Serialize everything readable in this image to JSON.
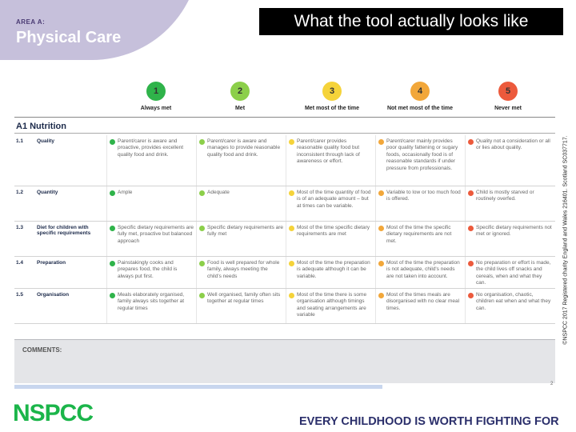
{
  "slide": {
    "title": "What the tool actually looks like",
    "side_note": "©NSPCC 2017 Registered charity England and Wales 216401. Scotland SC037717.",
    "area_label": "AREA A:",
    "area_title": "Physical Care"
  },
  "scale": [
    {
      "number": "1",
      "label": "Always met",
      "color": "#2fb34a"
    },
    {
      "number": "2",
      "label": "Met",
      "color": "#8ccf4a"
    },
    {
      "number": "3",
      "label": "Met most of the time",
      "color": "#f5d33a"
    },
    {
      "number": "4",
      "label": "Not met most of the time",
      "color": "#f2a73a"
    },
    {
      "number": "5",
      "label": "Never met",
      "color": "#ec5a3c"
    }
  ],
  "section": {
    "title": "A1 Nutrition"
  },
  "rows": [
    {
      "num": "1.1",
      "label": "Quality",
      "cells": [
        "Parent/carer is aware and proactive, provides excellent quality food and drink.",
        "Parent/carer is aware and manages to provide reasonable quality food and drink.",
        "Parent/carer provides reasonable quality food but inconsistent through lack of awareness or effort.",
        "Parent/carer mainly provides poor quality fattening or sugary foods, occasionally food is of reasonable standards if under pressure from professionals.",
        "Quality not a consideration or all or lies about quality."
      ]
    },
    {
      "num": "1.2",
      "label": "Quantity",
      "cells": [
        "Ample",
        "Adequate",
        "Most of the time quantity of food is of an adequate amount – but at times can be variable.",
        "Variable to low or too much food is offered.",
        "Child is mostly starved or routinely overfed."
      ]
    },
    {
      "num": "1.3",
      "label": "Diet for children with specific requirements",
      "cells": [
        "Specific dietary requirements are fully met, proactive but balanced approach",
        "Specific dietary requirements are fully met",
        "Most of the time specific dietary requirements are met",
        "Most of the time the specific dietary requirements are not met.",
        "Specific dietary requirements not met or ignored."
      ]
    },
    {
      "num": "1.4",
      "label": "Preparation",
      "cells": [
        "Painstakingly cooks and prepares food, the child is always put first.",
        "Food is well prepared for whole family, always meeting the child's needs",
        "Most of the time the preparation is adequate although it can be variable.",
        "Most of the time the preparation is not adequate, child's needs are not taken into account.",
        "No preparation or effort is made, the child lives off snacks and cereals, when and what they can."
      ]
    },
    {
      "num": "1.5",
      "label": "Organisation",
      "cells": [
        "Meals elaborately organised, family always sits together at regular times",
        "Well organised, family often sits together at regular times",
        "Most of the time there is some organisation although timings and seating arrangements are variable",
        "Most of the times meals are disorganised with no clear meal times.",
        "No organisation, chaotic, children eat when and what they can."
      ]
    }
  ],
  "comments_label": "COMMENTS:",
  "page_number": "2",
  "footer": {
    "logo": "NSPCC",
    "tagline": "EVERY CHILDHOOD IS WORTH FIGHTING FOR"
  }
}
